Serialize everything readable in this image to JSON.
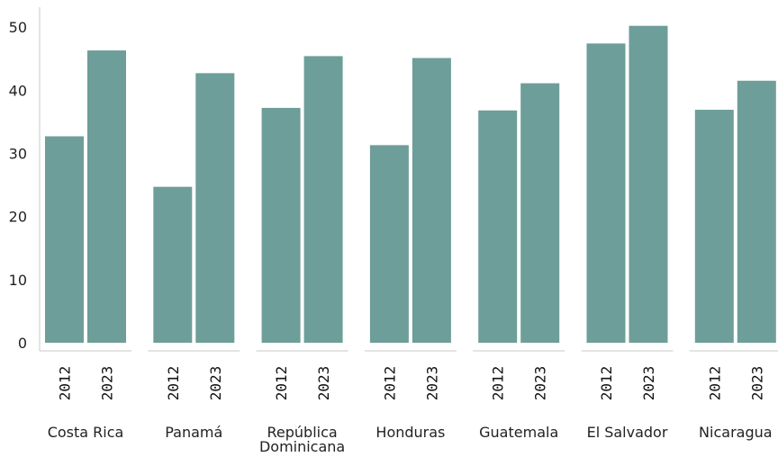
{
  "chart_data": {
    "type": "bar",
    "title": "",
    "xlabel": "",
    "ylabel": "",
    "ylim": [
      0,
      52
    ],
    "yticks": [
      0,
      10,
      20,
      30,
      40,
      50
    ],
    "grid": false,
    "bar_color": "#6e9e99",
    "axis_color": "#c8c8c8",
    "sub_categories": [
      "2012",
      "2023"
    ],
    "groups": [
      {
        "label": [
          "Costa Rica"
        ],
        "values": [
          32.7,
          46.3
        ]
      },
      {
        "label": [
          "Panamá"
        ],
        "values": [
          24.7,
          42.7
        ]
      },
      {
        "label": [
          "República",
          "Dominicana"
        ],
        "values": [
          37.2,
          45.4
        ]
      },
      {
        "label": [
          "Honduras"
        ],
        "values": [
          31.3,
          45.1
        ]
      },
      {
        "label": [
          "Guatemala"
        ],
        "values": [
          36.8,
          41.1
        ]
      },
      {
        "label": [
          "El Salvador"
        ],
        "values": [
          47.4,
          50.2
        ]
      },
      {
        "label": [
          "Nicaragua"
        ],
        "values": [
          36.9,
          41.5
        ]
      }
    ]
  }
}
